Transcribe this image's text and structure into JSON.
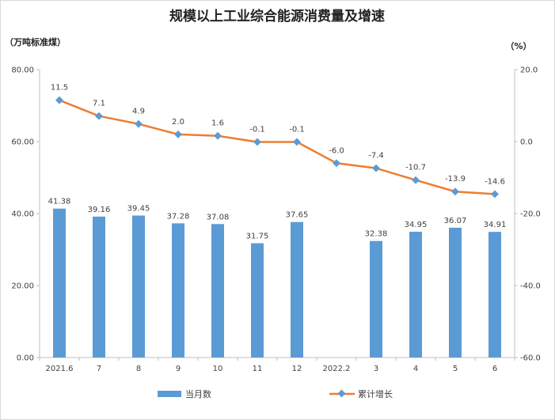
{
  "chart_data": {
    "type": "bar+line",
    "title": "规模以上工业综合能源消费量及增速",
    "left_unit": "（万吨标准煤）",
    "right_unit": "（%）",
    "categories": [
      "2021.6",
      "7",
      "8",
      "9",
      "10",
      "11",
      "12",
      "2022.2",
      "3",
      "4",
      "5",
      "6"
    ],
    "series": [
      {
        "name": "当月数",
        "type": "bar",
        "axis": "left",
        "color": "#5b9bd5",
        "values": [
          41.38,
          39.16,
          39.45,
          37.28,
          37.08,
          31.75,
          37.65,
          null,
          32.38,
          34.95,
          36.07,
          34.91
        ],
        "labels": [
          "41.38",
          "39.16",
          "39.45",
          "37.28",
          "37.08",
          "31.75",
          "37.65",
          "",
          "32.38",
          "34.95",
          "36.07",
          "34.91"
        ]
      },
      {
        "name": "累计增长",
        "type": "line",
        "axis": "right",
        "color": "#ed7d31",
        "marker_color": "#5b9bd5",
        "values": [
          11.5,
          7.1,
          4.9,
          2.0,
          1.6,
          -0.1,
          -0.1,
          -6.0,
          -7.4,
          -10.7,
          -13.9,
          -14.6
        ],
        "labels": [
          "11.5",
          "7.1",
          "4.9",
          "2.0",
          "1.6",
          "-0.1",
          "-0.1",
          "-6.0",
          "-7.4",
          "-10.7",
          "-13.9",
          "-14.6"
        ]
      }
    ],
    "left_axis": {
      "ylim": [
        0,
        80
      ],
      "ticks": [
        0,
        20,
        40,
        60,
        80
      ],
      "tick_labels": [
        "0.00",
        "20.00",
        "40.00",
        "60.00",
        "80.00"
      ]
    },
    "right_axis": {
      "ylim": [
        -60,
        20
      ],
      "ticks": [
        -60,
        -40,
        -20,
        0,
        20
      ],
      "tick_labels": [
        "-60.0",
        "-40.0",
        "-20.0",
        "0.0",
        "20.0"
      ]
    },
    "legend": {
      "position": "bottom",
      "bar_label": "当月数",
      "line_label": "累计增长"
    },
    "grid": false
  }
}
